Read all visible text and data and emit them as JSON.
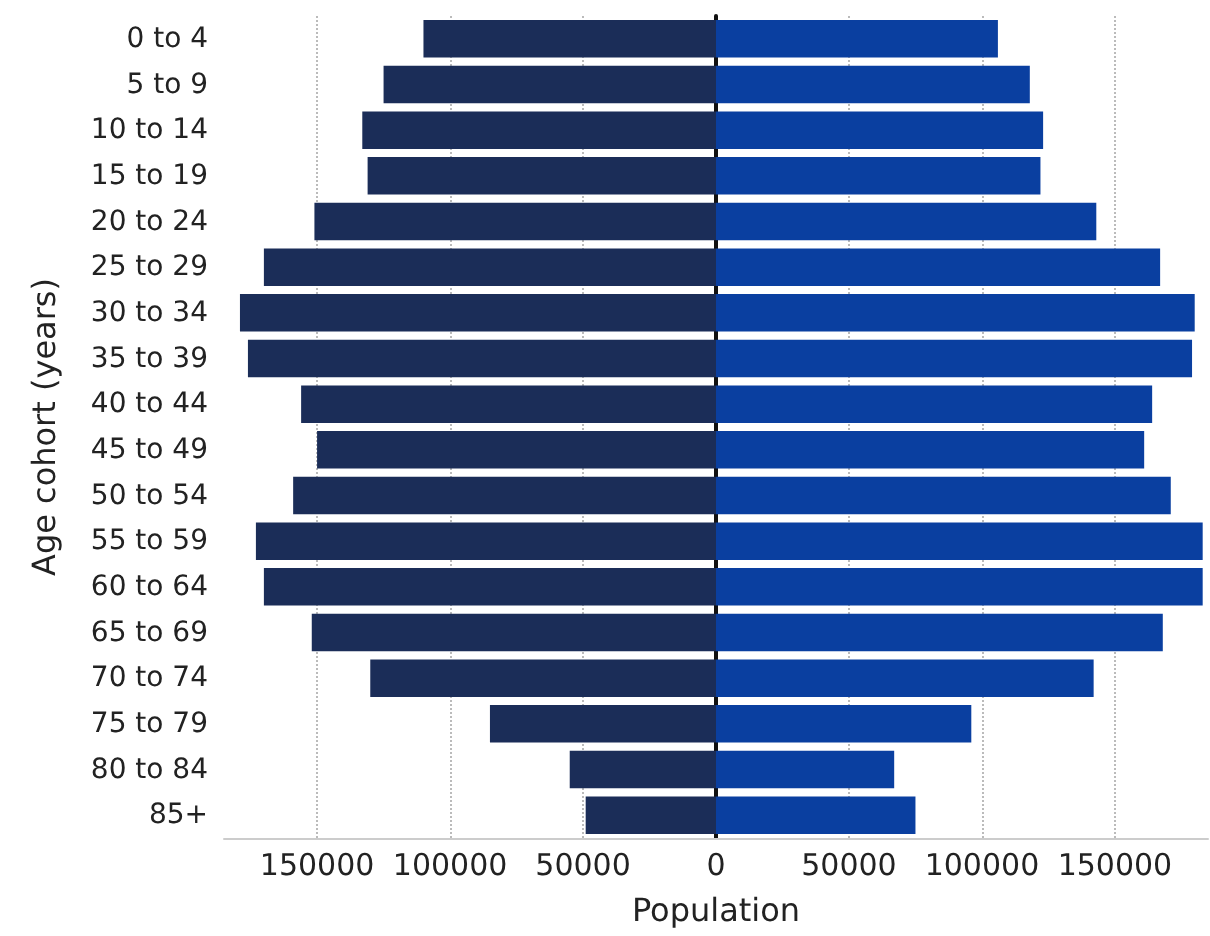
{
  "chart_data": {
    "type": "bar",
    "orientation": "horizontal",
    "stacked": true,
    "xlabel": "Population",
    "ylabel": "Age cohort (years)",
    "categories": [
      "0 to 4",
      "5 to 9",
      "10 to 14",
      "15 to 19",
      "20 to 24",
      "25 to 29",
      "30 to 34",
      "35 to 39",
      "40 to 44",
      "45 to 49",
      "50 to 54",
      "55 to 59",
      "60 to 64",
      "65 to 69",
      "70 to 74",
      "75 to 79",
      "80 to 84",
      "85+"
    ],
    "series": [
      {
        "color": "#1b2d58",
        "values": [
          -110000,
          -125000,
          -133000,
          -131000,
          -151000,
          -170000,
          -179000,
          -176000,
          -156000,
          -150000,
          -159000,
          -173000,
          -170000,
          -152000,
          -130000,
          -85000,
          -55000,
          -49000
        ]
      },
      {
        "color": "#0a3fa0",
        "values": [
          106000,
          118000,
          123000,
          122000,
          143000,
          167000,
          180000,
          179000,
          164000,
          161000,
          171000,
          183000,
          183000,
          168000,
          142000,
          96000,
          67000,
          75000
        ]
      }
    ],
    "xlim": [
      -185000,
      185000
    ],
    "xticks": [
      {
        "value": -150000,
        "label": "150000"
      },
      {
        "value": -100000,
        "label": "100000"
      },
      {
        "value": -50000,
        "label": "50000"
      },
      0,
      50000,
      100000,
      150000
    ],
    "grid": "x"
  }
}
